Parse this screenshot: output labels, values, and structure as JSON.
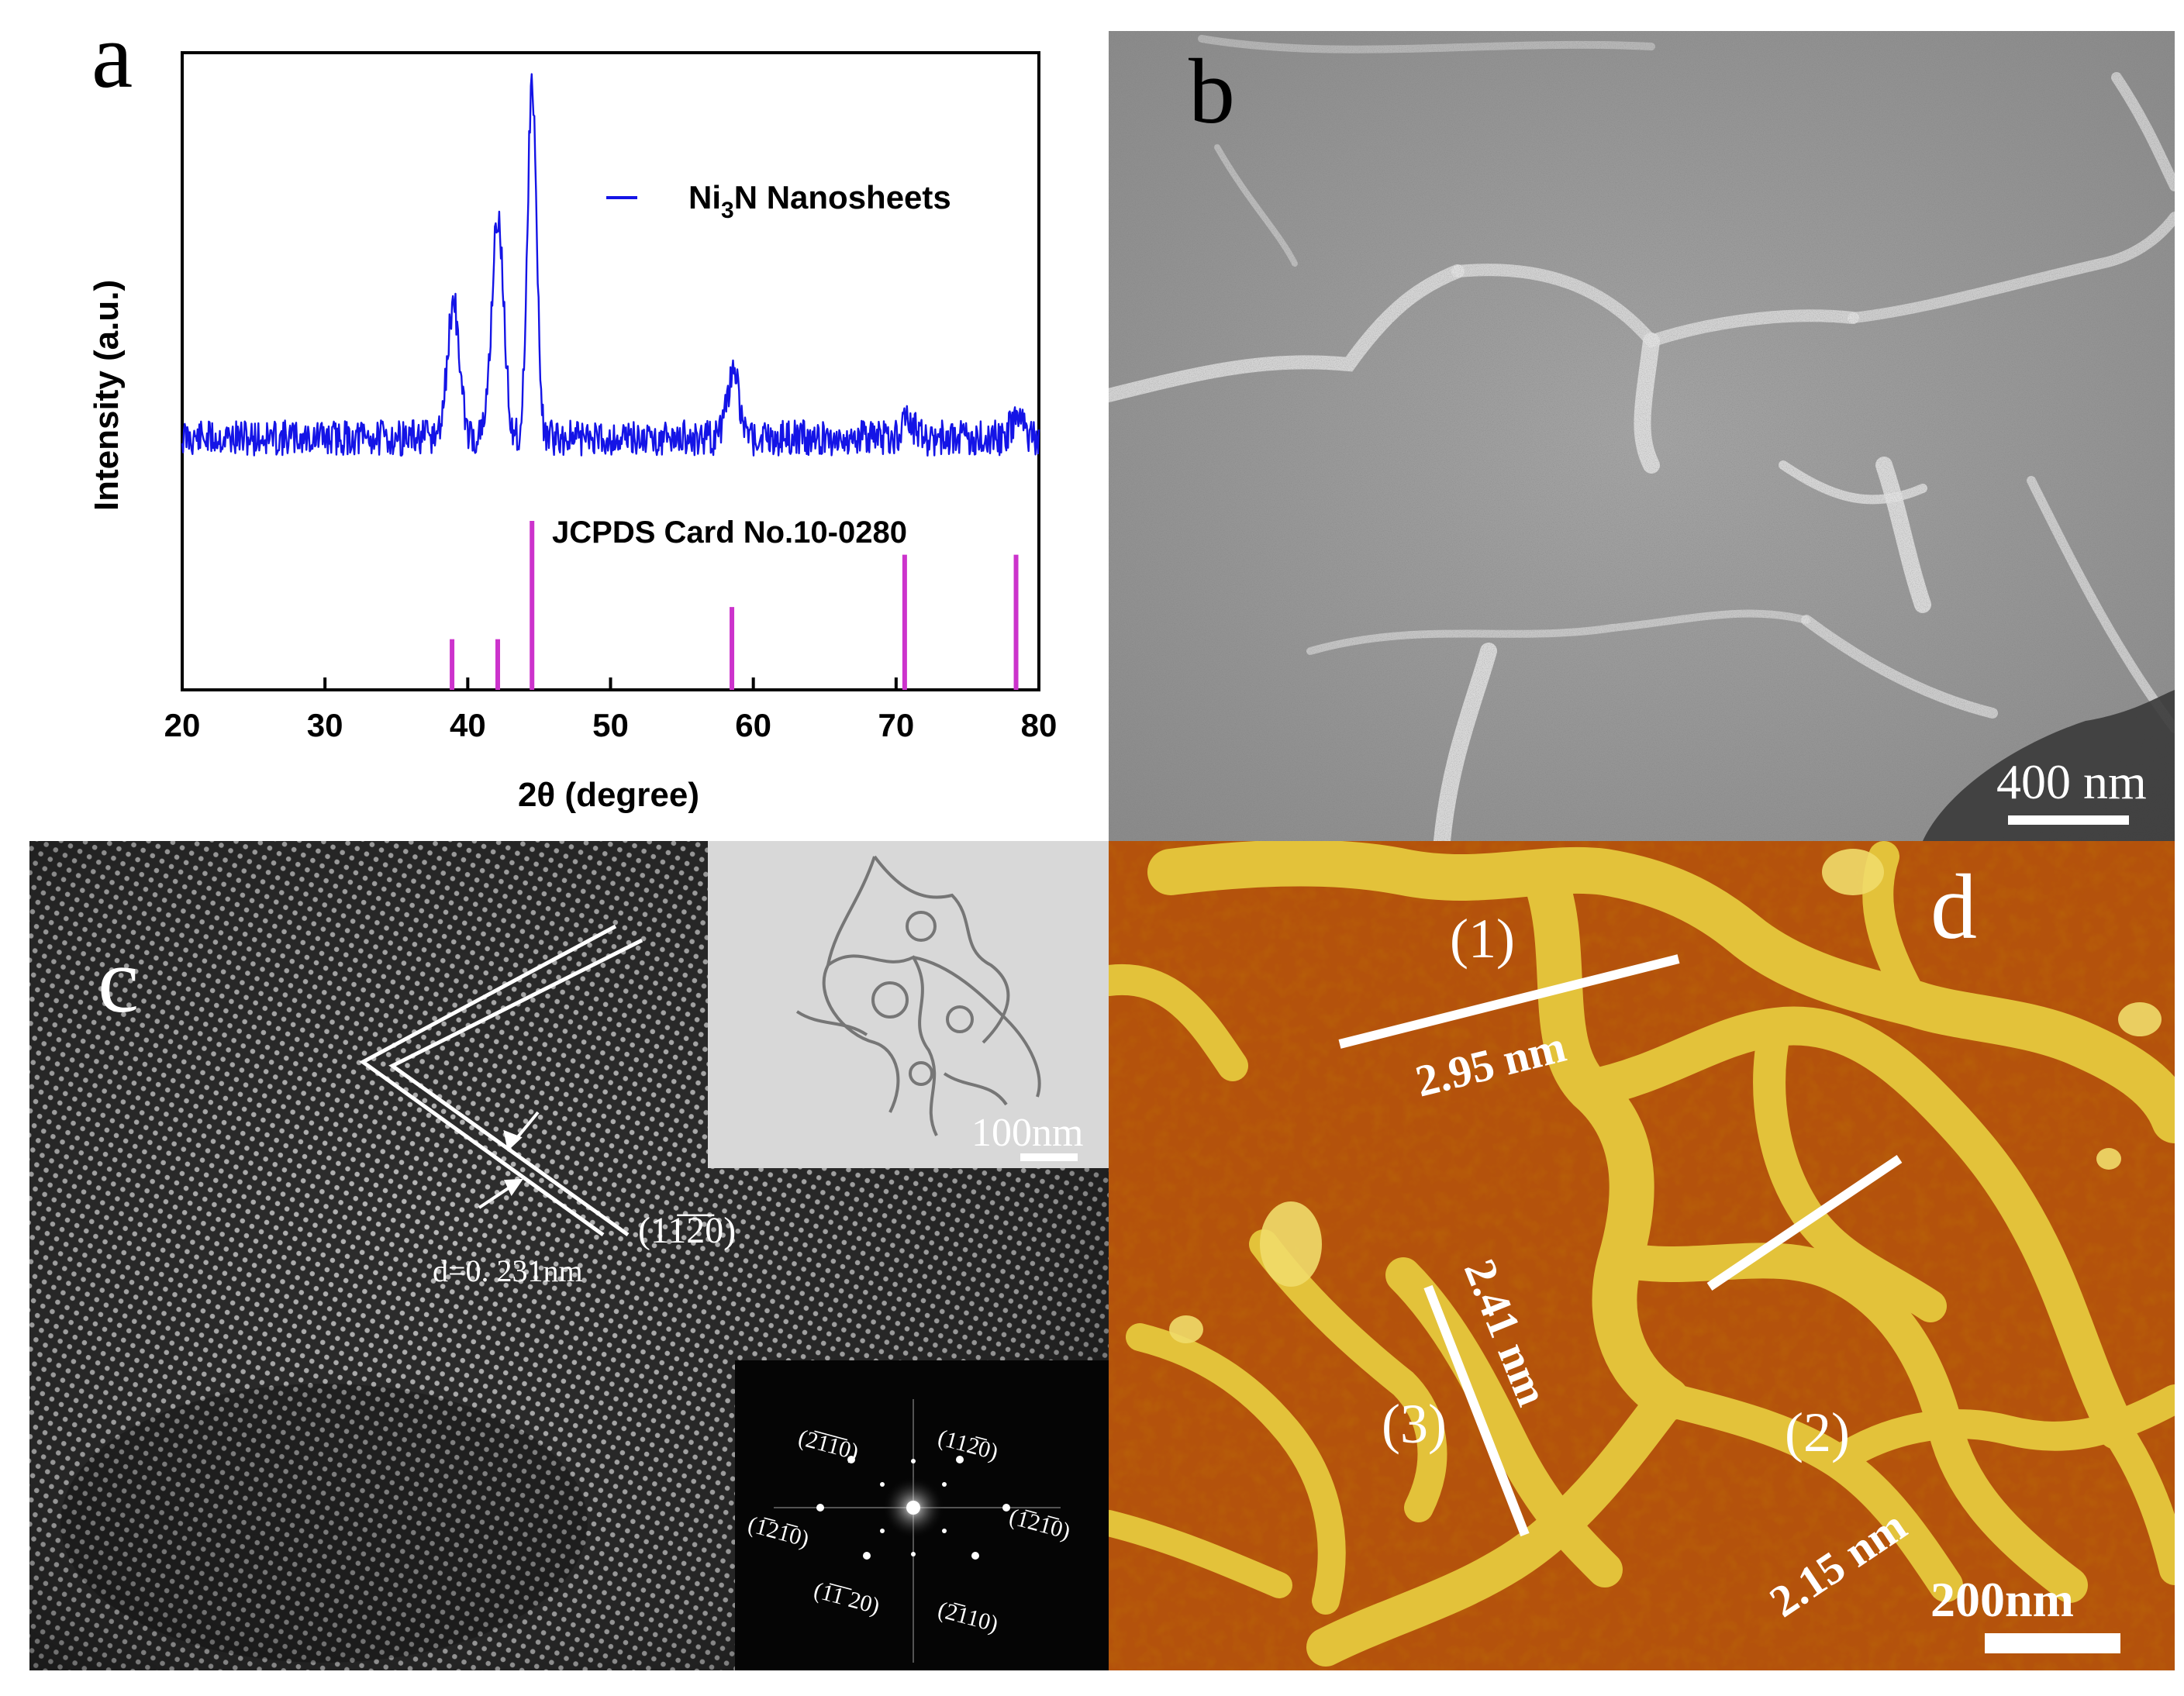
{
  "figure": {
    "panel_a": {
      "letter": "a",
      "legend_label_main": "Ni",
      "legend_label_sub": "3",
      "legend_label_rest": "N Nanosheets",
      "reference_label": "JCPDS Card No.10-0280",
      "colors": {
        "xrd_trace": "#1414e6",
        "reference_sticks": "#cc33cc"
      }
    },
    "panel_b": {
      "letter": "b",
      "scale_bar_label": "400 nm"
    },
    "panel_c": {
      "letter": "c",
      "plane_label": "(11̅2̅0)",
      "d_spacing_label": "d=0. 231nm",
      "inset_scale_label": "100nm",
      "fft_spots": [
        "(2̅1̅1̅0)",
        "(112̅0)",
        "(1̅21̅0)",
        "(1̅21̅0)",
        "(1̅1̅ 20)",
        "(2̅110)"
      ]
    },
    "panel_d": {
      "letter": "d",
      "profile_1": {
        "id": "(1)",
        "height": "2.95 nm"
      },
      "profile_2": {
        "id": "(2)",
        "height": "2.15 nm"
      },
      "profile_3": {
        "id": "(3)",
        "height": "2.41 nm"
      },
      "scale_bar_label": "200nm"
    }
  },
  "chart_data": {
    "type": "line",
    "xlabel": "2θ (degree)",
    "ylabel": "Intensity (a.u.)",
    "xlim": [
      20,
      80
    ],
    "xticks": [
      20,
      30,
      40,
      50,
      60,
      70,
      80
    ],
    "series": [
      {
        "name": "Ni3N Nanosheets",
        "peaks": [
          {
            "x": 39.0,
            "height": 0.38
          },
          {
            "x": 42.1,
            "height": 0.62
          },
          {
            "x": 44.5,
            "height": 1.0
          },
          {
            "x": 58.6,
            "height": 0.18
          },
          {
            "x": 70.8,
            "height": 0.05
          },
          {
            "x": 78.5,
            "height": 0.06
          }
        ]
      }
    ],
    "reference": {
      "name": "JCPDS Card No.10-0280",
      "sticks": [
        {
          "x": 38.9,
          "height": 0.3
        },
        {
          "x": 42.1,
          "height": 0.3
        },
        {
          "x": 44.5,
          "height": 1.0
        },
        {
          "x": 58.5,
          "height": 0.49
        },
        {
          "x": 70.6,
          "height": 0.8
        },
        {
          "x": 78.4,
          "height": 0.8
        }
      ]
    }
  }
}
